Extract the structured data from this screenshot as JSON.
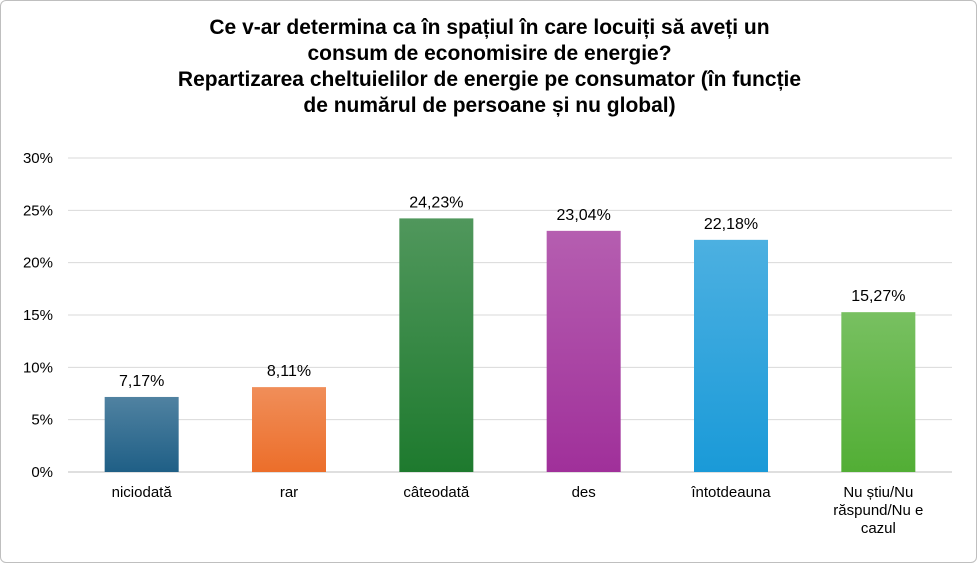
{
  "chart_data": {
    "type": "bar",
    "title_lines": [
      "Ce v-ar determina ca în spațiul în care locuiți să aveți un",
      "consum  de economisire de energie?",
      "Repartizarea cheltuielilor de energie pe consumator (în funcție",
      "de numărul de persoane și nu global)"
    ],
    "categories": [
      "niciodată",
      "rar",
      "câteodată",
      "des",
      "întotdeauna",
      "Nu știu/Nu răspund/Nu e cazul"
    ],
    "values": [
      7.17,
      8.11,
      24.23,
      23.04,
      22.18,
      15.27
    ],
    "value_labels": [
      "7,17%",
      "8,11%",
      "24,23%",
      "23,04%",
      "22,18%",
      "15,27%"
    ],
    "colors": [
      "#1f5f86",
      "#ec6e2a",
      "#1e7a2e",
      "#a0309a",
      "#1a9ad8",
      "#52ae35"
    ],
    "ylim": [
      0,
      30
    ],
    "yticks": [
      "0%",
      "5%",
      "10%",
      "15%",
      "20%",
      "25%",
      "30%"
    ],
    "ytick_values": [
      0,
      5,
      10,
      15,
      20,
      25,
      30
    ],
    "grid": true,
    "xlabel": "",
    "ylabel": ""
  }
}
